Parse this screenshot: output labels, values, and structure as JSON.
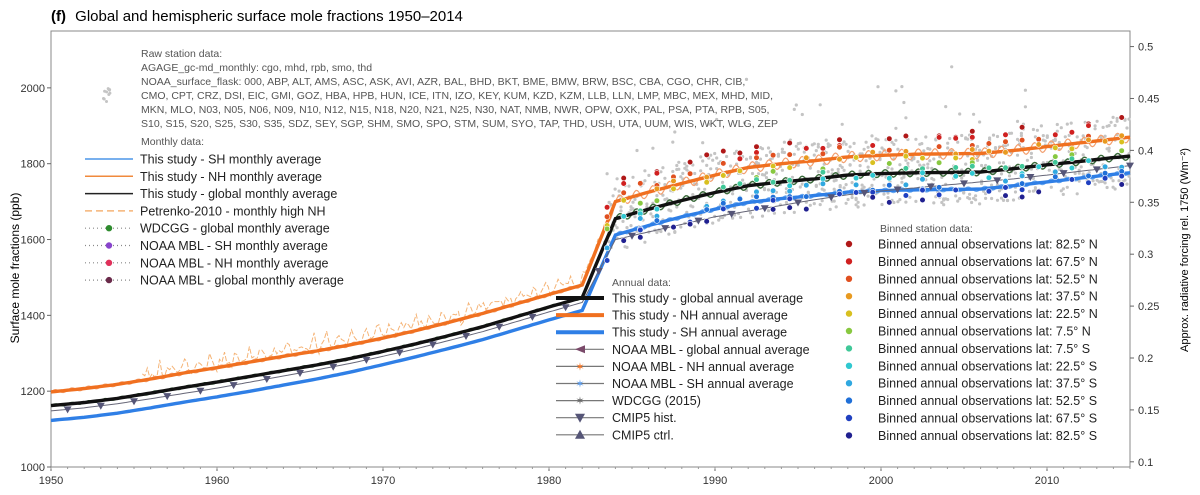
{
  "chart_data": {
    "type": "line",
    "panel_label": "(f)",
    "title": "Global and hemispheric surface mole fractions 1950–2014",
    "ylabel": "Surface mole fractions (ppb)",
    "y2label": "Approx. radiative forcing rel. 1750 (Wm⁻²)",
    "xlim": [
      1950,
      2015
    ],
    "ylim": [
      1000,
      2150
    ],
    "y2lim": [
      0.095,
      0.515
    ],
    "xticks": [
      1950,
      1960,
      1970,
      1980,
      1990,
      2000,
      2010
    ],
    "yticks": [
      1000,
      1200,
      1400,
      1600,
      1800,
      2000
    ],
    "y2ticks": [
      0.1,
      0.15,
      0.2,
      0.25,
      0.3,
      0.35,
      0.4,
      0.45,
      0.5
    ],
    "grid": false,
    "raw_station": {
      "heading": "Raw station data:",
      "line1": "AGAGE_gc-md_monthly: cgo, mhd, rpb, smo, thd",
      "line2": "NOAA_surface_flask: 000, ABP, ALT, AMS, ASC, ASK, AVI, AZR, BAL, BHD, BKT, BME, BMW, BRW, BSC, CBA, CGO, CHR, CIB,",
      "line3": "CMO, CPT, CRZ, DSI, EIC, GMI, GOZ, HBA, HPB, HUN, ICE, ITN, IZO, KEY, KUM, KZD, KZM, LLB, LLN, LMP, MBC, MEX, MHD, MID,",
      "line4": "MKN, MLO, N03, N05, N06, N09, N10, N12, N15, N18, N20, N21, N25, N30, NAT, NMB, NWR, OPW, OXK, PAL, PSA, PTA, RPB, S05,",
      "line5": "S10, S15, S20, S25, S30, S35, SDZ, SEY, SGP, SHM, SMO, SPO, STM, SUM, SYO, TAP, THD, USH, UTA, UUM, WIS, WKT, WLG, ZEP"
    },
    "monthly_legend": {
      "heading": "Monthly data:",
      "items": [
        {
          "label": "This study - SH monthly average",
          "color": "#4b96e8",
          "style": "line"
        },
        {
          "label": "This study - NH monthly average",
          "color": "#f08a3c",
          "style": "line"
        },
        {
          "label": "This study - global monthly average",
          "color": "#222222",
          "style": "line"
        },
        {
          "label": "Petrenko-2010 - monthly high NH",
          "color": "#f5b477",
          "style": "dash"
        },
        {
          "label": "WDCGG - global monthly average",
          "color": "#2e8b2e",
          "style": "dotmarker"
        },
        {
          "label": "NOAA MBL - SH monthly average",
          "color": "#8844cc",
          "style": "dotmarker"
        },
        {
          "label": "NOAA MBL - NH monthly average",
          "color": "#e0305a",
          "style": "dotmarker"
        },
        {
          "label": "NOAA MBL - global monthly average",
          "color": "#6a2a4a",
          "style": "dotmarker"
        }
      ]
    },
    "annual_legend": {
      "heading": "Annual data:",
      "items": [
        {
          "label": "This study - global annual average",
          "color": "#111111",
          "style": "thick"
        },
        {
          "label": "This study - NH annual average",
          "color": "#f07020",
          "style": "thick"
        },
        {
          "label": "This study - SH annual average",
          "color": "#2f7fe6",
          "style": "thick"
        },
        {
          "label": "NOAA MBL - global annual average",
          "color": "#7a4a6a",
          "style": "arrow"
        },
        {
          "label": "NOAA MBL - NH annual average",
          "color": "#f07020",
          "style": "star"
        },
        {
          "label": "NOAA MBL - SH annual average",
          "color": "#5a9ae8",
          "style": "star"
        },
        {
          "label": "WDCGG (2015)",
          "color": "#666666",
          "style": "star"
        },
        {
          "label": "CMIP5 hist.",
          "color": "#555577",
          "style": "triangle-down"
        },
        {
          "label": "CMIP5 ctrl.",
          "color": "#555577",
          "style": "triangle-up"
        }
      ]
    },
    "binned_legend": {
      "heading": "Binned station data:",
      "items": [
        {
          "label": "Binned annual observations lat: 82.5° N",
          "color": "#b01818"
        },
        {
          "label": "Binned annual observations lat: 67.5° N",
          "color": "#d02020"
        },
        {
          "label": "Binned annual observations lat: 52.5° N",
          "color": "#e05020"
        },
        {
          "label": "Binned annual observations lat: 37.5° N",
          "color": "#e89a20"
        },
        {
          "label": "Binned annual observations lat: 22.5° N",
          "color": "#d8c020"
        },
        {
          "label": "Binned annual observations lat: 7.5° N",
          "color": "#88c840"
        },
        {
          "label": "Binned annual observations lat: 7.5° S",
          "color": "#40c898"
        },
        {
          "label": "Binned annual observations lat: 22.5° S",
          "color": "#30c8d0"
        },
        {
          "label": "Binned annual observations lat: 37.5° S",
          "color": "#30a8e0"
        },
        {
          "label": "Binned annual observations lat: 52.5° S",
          "color": "#2070d8"
        },
        {
          "label": "Binned annual observations lat: 67.5° S",
          "color": "#2040c0"
        },
        {
          "label": "Binned annual observations lat: 82.5° S",
          "color": "#202090"
        }
      ]
    },
    "x": [
      1950,
      1952,
      1954,
      1956,
      1958,
      1960,
      1962,
      1964,
      1966,
      1968,
      1970,
      1972,
      1974,
      1976,
      1978,
      1980,
      1982,
      1984,
      1986,
      1988,
      1990,
      1992,
      1994,
      1996,
      1998,
      2000,
      2002,
      2004,
      2006,
      2008,
      2010,
      2012,
      2014,
      2015
    ],
    "series": [
      {
        "name": "This study - NH annual average",
        "color": "#f07020",
        "values": [
          1198,
          1207,
          1218,
          1232,
          1248,
          1262,
          1277,
          1292,
          1306,
          1322,
          1340,
          1360,
          1382,
          1405,
          1430,
          1455,
          1480,
          1700,
          1725,
          1748,
          1770,
          1790,
          1800,
          1808,
          1818,
          1822,
          1825,
          1826,
          1827,
          1835,
          1845,
          1855,
          1865,
          1870
        ]
      },
      {
        "name": "This study - global annual average",
        "color": "#111111",
        "values": [
          1162,
          1170,
          1181,
          1195,
          1210,
          1224,
          1239,
          1254,
          1269,
          1286,
          1305,
          1325,
          1347,
          1370,
          1396,
          1422,
          1447,
          1655,
          1680,
          1703,
          1724,
          1742,
          1752,
          1760,
          1770,
          1774,
          1776,
          1777,
          1778,
          1787,
          1797,
          1806,
          1816,
          1820
        ]
      },
      {
        "name": "This study - SH annual average",
        "color": "#2f7fe6",
        "values": [
          1123,
          1131,
          1142,
          1156,
          1171,
          1185,
          1200,
          1216,
          1232,
          1250,
          1270,
          1291,
          1313,
          1336,
          1362,
          1388,
          1413,
          1612,
          1637,
          1660,
          1680,
          1698,
          1708,
          1716,
          1725,
          1729,
          1731,
          1732,
          1733,
          1742,
          1752,
          1762,
          1772,
          1776
        ]
      },
      {
        "name": "CMIP5 hist.",
        "color": "#555577",
        "values": [
          1148,
          1156,
          1167,
          1180,
          1194,
          1208,
          1224,
          1240,
          1256,
          1273,
          1292,
          1312,
          1334,
          1357,
          1383,
          1409,
          1434,
          1600,
          1620,
          1640,
          1660,
          1675,
          1690,
          1705,
          1718,
          1728,
          1736,
          1744,
          1752,
          1760,
          1770,
          1780,
          1790,
          1795
        ]
      }
    ],
    "annotations": {
      "raw_station_cloud": "grey dots 1983–2015",
      "binned_points": "colored circles by latitude band 1983–2015"
    }
  }
}
